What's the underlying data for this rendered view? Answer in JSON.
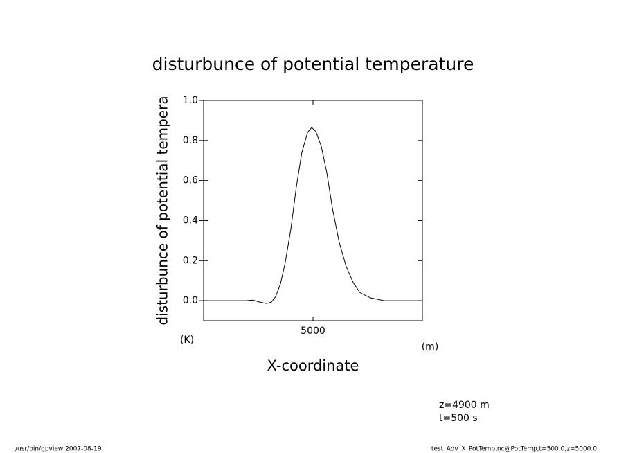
{
  "chart_data": {
    "type": "line",
    "title": "disturbunce of potential temperature",
    "y_label": "disturbunce of potential tempera",
    "y_units": "(K)",
    "x_label": "X-coordinate",
    "x_units": "(m)",
    "annotations": [
      "z=4900 m",
      "t=500 s"
    ],
    "footer_left": "/usr/bin/gpview   2007-08-19",
    "footer_right": "test_Adv_X_PotTemp.nc@PotTemp,t=500.0,z=5000.0",
    "x": [
      0,
      1930,
      2250,
      2560,
      2880,
      3100,
      3290,
      3510,
      3730,
      3990,
      4240,
      4490,
      4750,
      4940,
      5130,
      5380,
      5630,
      5890,
      6200,
      6520,
      6840,
      7150,
      7630,
      8260,
      10000
    ],
    "series": [
      {
        "color": "#000000",
        "values": [
          0,
          0,
          0.003,
          -0.007,
          -0.014,
          -0.007,
          0.02,
          0.083,
          0.19,
          0.36,
          0.57,
          0.74,
          0.84,
          0.865,
          0.845,
          0.77,
          0.64,
          0.46,
          0.29,
          0.17,
          0.09,
          0.04,
          0.014,
          0,
          0
        ]
      }
    ],
    "xlim": [
      0,
      10000
    ],
    "xticks": [
      5000
    ],
    "ylim": [
      -0.1,
      1.0
    ],
    "yticks": [
      {
        "value": 0,
        "label": "0.0"
      },
      0.2,
      0.4,
      0.6,
      0.8,
      {
        "value": 1,
        "label": "1.0"
      }
    ]
  }
}
